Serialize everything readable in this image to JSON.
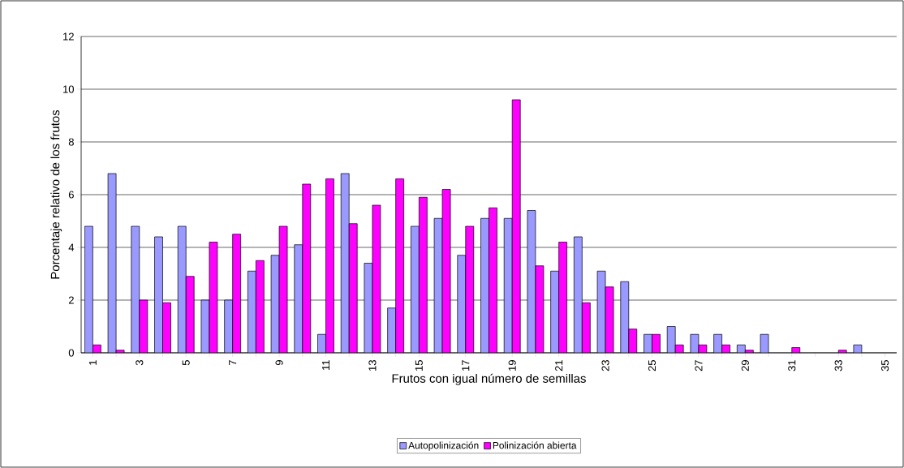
{
  "chart_data": {
    "type": "bar",
    "xlabel": "Frutos con igual número de semillas",
    "ylabel": "Porcentaje relativo de los frutos",
    "categories": [
      "1",
      null,
      "3",
      null,
      "5",
      null,
      "7",
      null,
      "9",
      null,
      "11",
      null,
      "13",
      null,
      "15",
      null,
      "17",
      null,
      "19",
      null,
      "21",
      null,
      "23",
      null,
      "25",
      null,
      "27",
      null,
      "29",
      null,
      "31",
      null,
      "33",
      null,
      "35"
    ],
    "series": [
      {
        "name": "Autopolinización",
        "color": "#9999ff",
        "values": [
          4.8,
          6.8,
          4.8,
          4.4,
          4.8,
          2.0,
          2.0,
          3.1,
          3.7,
          4.1,
          0.7,
          6.8,
          3.4,
          1.7,
          4.8,
          5.1,
          3.7,
          5.1,
          5.1,
          5.4,
          3.1,
          4.4,
          3.1,
          2.7,
          0.7,
          1.0,
          0.7,
          0.7,
          0.3,
          0.7,
          0,
          0,
          0,
          0.3,
          0
        ]
      },
      {
        "name": "Polinización abierta",
        "color": "#ff00ff",
        "values": [
          0.3,
          0.1,
          2.0,
          1.9,
          2.9,
          4.2,
          4.5,
          3.5,
          4.8,
          6.4,
          6.6,
          4.9,
          5.6,
          6.6,
          5.9,
          6.2,
          4.8,
          5.5,
          9.6,
          3.3,
          4.2,
          1.9,
          2.5,
          0.9,
          0.7,
          0.3,
          0.3,
          0.3,
          0.1,
          0,
          0.2,
          0,
          0.1,
          0,
          0
        ]
      }
    ],
    "ylim": [
      0,
      12
    ],
    "yticks": [
      0,
      2,
      4,
      6,
      8,
      10,
      12
    ],
    "grid": "y",
    "legend": "bottom"
  }
}
